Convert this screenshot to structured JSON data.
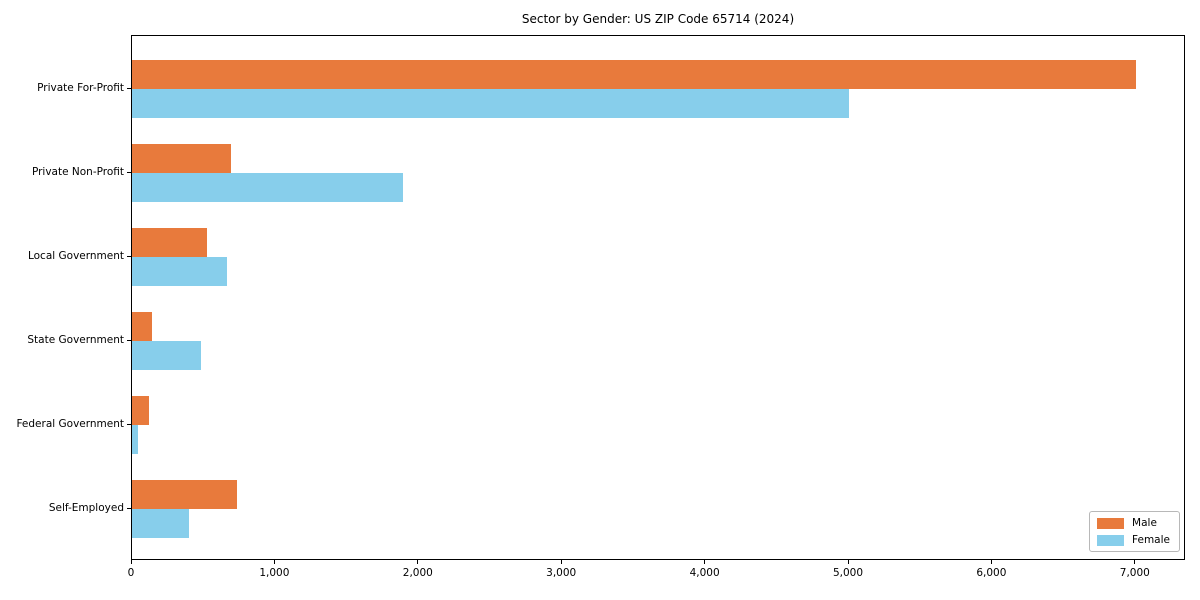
{
  "chart_data": {
    "type": "bar",
    "orientation": "horizontal",
    "title": "Sector by Gender: US ZIP Code 65714 (2024)",
    "xlabel": "",
    "ylabel": "",
    "categories": [
      "Private For-Profit",
      "Private Non-Profit",
      "Local Government",
      "State Government",
      "Federal Government",
      "Self-Employed"
    ],
    "series": [
      {
        "name": "Male",
        "color": "#e87a3c",
        "values": [
          7000,
          690,
          520,
          140,
          120,
          730
        ]
      },
      {
        "name": "Female",
        "color": "#87ceeb",
        "values": [
          5000,
          1890,
          660,
          480,
          40,
          400
        ]
      }
    ],
    "xlim": [
      0,
      7350
    ],
    "x_ticks": [
      {
        "value": 0,
        "label": "0"
      },
      {
        "value": 1000,
        "label": "1,000"
      },
      {
        "value": 2000,
        "label": "2,000"
      },
      {
        "value": 3000,
        "label": "3,000"
      },
      {
        "value": 4000,
        "label": "4,000"
      },
      {
        "value": 5000,
        "label": "5,000"
      },
      {
        "value": 6000,
        "label": "6,000"
      },
      {
        "value": 7000,
        "label": "7,000"
      }
    ],
    "grid": false,
    "legend_position": "lower right"
  }
}
